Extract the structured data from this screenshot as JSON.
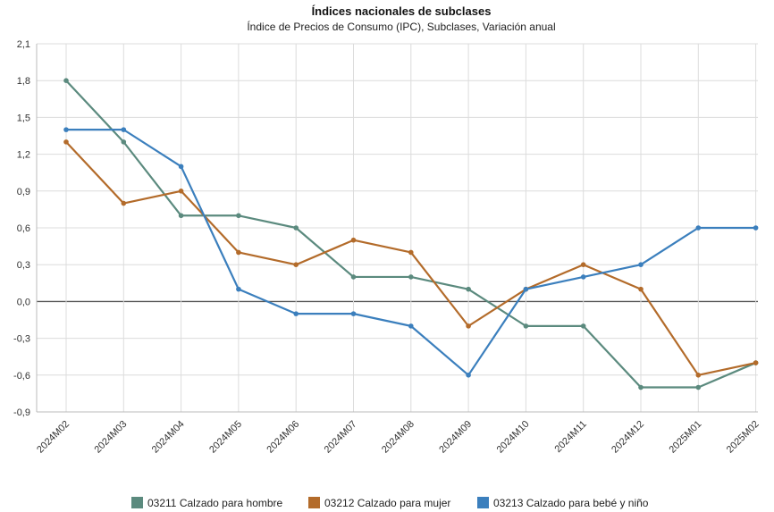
{
  "chart_data": {
    "type": "line",
    "title": "Índices nacionales de subclases",
    "subtitle": "Índice de Precios de Consumo (IPC), Subclases, Variación anual",
    "categories": [
      "2024M02",
      "2024M03",
      "2024M04",
      "2024M05",
      "2024M06",
      "2024M07",
      "2024M08",
      "2024M09",
      "2024M10",
      "2024M11",
      "2024M12",
      "2025M01",
      "2025M02"
    ],
    "yticks": [
      "2,1",
      "1,8",
      "1,5",
      "1,2",
      "0,9",
      "0,6",
      "0,3",
      "0,0",
      "-0,3",
      "-0,6",
      "-0,9"
    ],
    "ylim": [
      -0.9,
      2.1
    ],
    "grid": true,
    "legend_position": "bottom",
    "series": [
      {
        "name": "03211 Calzado para hombre",
        "color": "#5b8a7e",
        "values": [
          1.8,
          1.3,
          0.7,
          0.7,
          0.6,
          0.2,
          0.2,
          0.1,
          -0.2,
          -0.2,
          -0.7,
          -0.7,
          -0.5
        ]
      },
      {
        "name": "03212 Calzado para mujer",
        "color": "#b36b2a",
        "values": [
          1.3,
          0.8,
          0.9,
          0.4,
          0.3,
          0.5,
          0.4,
          -0.2,
          0.1,
          0.3,
          0.1,
          -0.6,
          -0.5
        ]
      },
      {
        "name": "03213 Calzado para bebé y niño",
        "color": "#3b7fbd",
        "values": [
          1.4,
          1.4,
          1.1,
          0.1,
          -0.1,
          -0.1,
          -0.2,
          -0.6,
          0.1,
          0.2,
          0.3,
          0.6,
          0.6
        ]
      }
    ]
  }
}
